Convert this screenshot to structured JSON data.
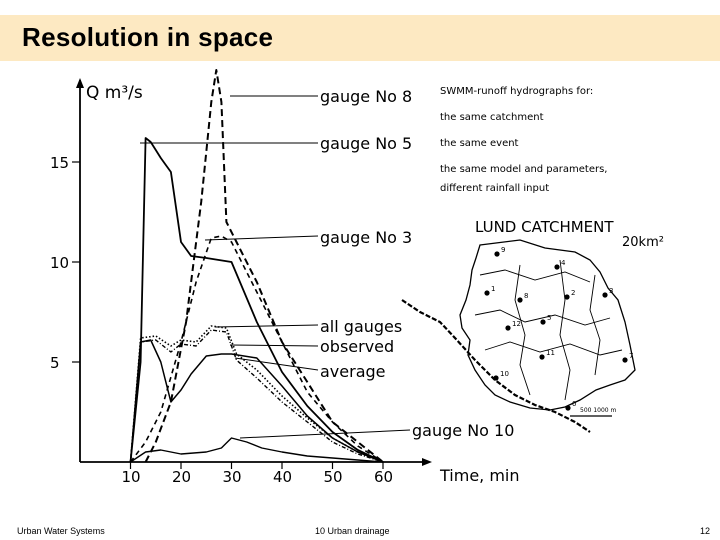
{
  "slide": {
    "title": "Resolution in space",
    "footer_left": "Urban Water Systems",
    "footer_center": "10 Urban drainage",
    "footer_right": "12"
  },
  "figure": {
    "y_axis_label": "Q m³/s",
    "x_axis_label": "Time, min",
    "y_ticks": [
      "15",
      "10",
      "5"
    ],
    "x_ticks": [
      "10",
      "20",
      "30",
      "40",
      "50",
      "60"
    ],
    "curve_labels": {
      "gauge8": "gauge No 8",
      "gauge5": "gauge No 5",
      "gauge3": "gauge No 3",
      "all": "all gauges",
      "observed": "observed",
      "average": "average",
      "gauge10": "gauge No 10"
    },
    "note_lines": [
      "SWMM-runoff hydrographs for:",
      "the same catchment",
      "the same event",
      "the same model and parameters,",
      "different rainfall input"
    ],
    "map_title": "LUND CATCHMENT",
    "map_area": "20km²",
    "map_scale": "500 1000 m",
    "gauge_numbers": [
      "9",
      "4",
      "1",
      "8",
      "2",
      "3",
      "5",
      "12",
      "11",
      "10",
      "7",
      "0"
    ]
  },
  "chart_data": {
    "type": "line",
    "xlabel": "Time, min",
    "ylabel": "Q m³/s",
    "xlim": [
      0,
      70
    ],
    "ylim": [
      0,
      20
    ],
    "x_ticks": [
      10,
      20,
      30,
      40,
      50,
      60
    ],
    "y_ticks": [
      5,
      10,
      15
    ],
    "series": [
      {
        "name": "gauge No 8",
        "x": [
          13,
          15,
          18,
          21,
          24,
          26,
          27,
          28,
          29,
          31,
          35,
          40,
          45,
          50,
          55,
          60
        ],
        "values": [
          0,
          1,
          3,
          7,
          13,
          18,
          19.6,
          18,
          12,
          11,
          9,
          6,
          4,
          2,
          1,
          0
        ]
      },
      {
        "name": "gauge No 5",
        "x": [
          10,
          12,
          13,
          14,
          16,
          18,
          20,
          22,
          25,
          30,
          35,
          40,
          45,
          50,
          55,
          60
        ],
        "values": [
          0,
          5,
          16.2,
          16,
          15.2,
          14.5,
          11,
          10.3,
          10.2,
          10,
          7,
          4.5,
          2.8,
          1.5,
          0.6,
          0
        ]
      },
      {
        "name": "gauge No 3",
        "x": [
          10,
          13,
          16,
          20,
          23,
          26,
          28,
          30,
          35,
          40,
          45,
          50,
          55,
          60
        ],
        "values": [
          0,
          1,
          2.5,
          6,
          9,
          11.2,
          11.3,
          11,
          8.5,
          6,
          3.5,
          2,
          0.8,
          0
        ]
      },
      {
        "name": "all gauges",
        "x": [
          10,
          12,
          15,
          18,
          20,
          23,
          26,
          29,
          31,
          35,
          40,
          45,
          50,
          55,
          60
        ],
        "values": [
          0,
          6.2,
          6.3,
          5.8,
          6.1,
          6,
          6.8,
          6.7,
          5.4,
          4.6,
          3.3,
          2.2,
          1.2,
          0.5,
          0
        ]
      },
      {
        "name": "observed",
        "x": [
          10,
          12,
          15,
          18,
          20,
          23,
          26,
          29,
          31,
          35,
          40,
          45,
          50,
          55,
          60
        ],
        "values": [
          0,
          6,
          6.1,
          5.5,
          5.9,
          5.8,
          6.6,
          6.5,
          5.1,
          4.2,
          3,
          2,
          1,
          0.4,
          0
        ]
      },
      {
        "name": "average",
        "x": [
          10,
          12,
          14,
          16,
          18,
          20,
          22,
          25,
          28,
          30,
          35,
          40,
          45,
          50,
          55,
          60
        ],
        "values": [
          0,
          6,
          6.1,
          5,
          3,
          3.6,
          4.4,
          5.3,
          5.4,
          5.4,
          5.2,
          3.8,
          2.3,
          1.2,
          0.5,
          0
        ]
      },
      {
        "name": "gauge No 10",
        "x": [
          10,
          13,
          16,
          20,
          25,
          28,
          30,
          33,
          36,
          40,
          45,
          50,
          55,
          60
        ],
        "values": [
          0,
          0.5,
          0.6,
          0.4,
          0.5,
          0.7,
          1.2,
          1,
          0.7,
          0.5,
          0.3,
          0.2,
          0.1,
          0
        ]
      }
    ]
  }
}
